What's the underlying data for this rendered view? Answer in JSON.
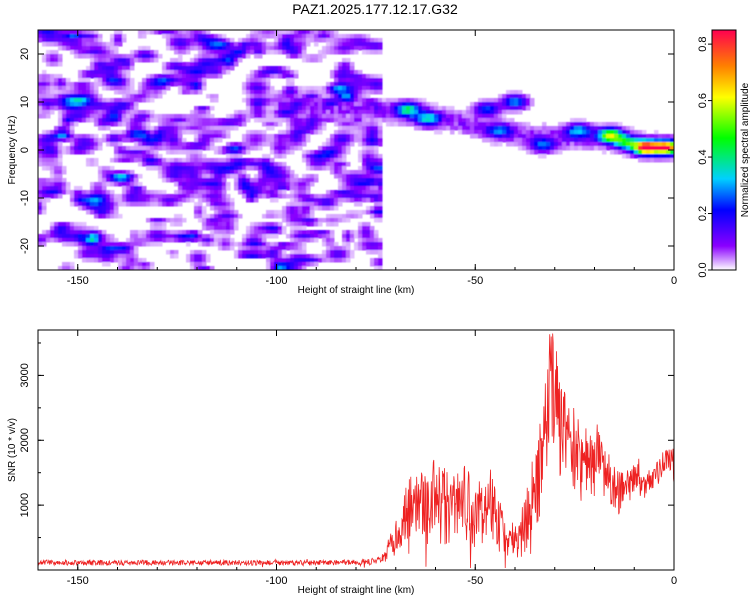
{
  "title": "PAZ1.2025.177.12.17.G32",
  "chart_data": [
    {
      "type": "heatmap",
      "title": "PAZ1.2025.177.12.17.G32",
      "xlabel": "Height of straight line (km)",
      "ylabel": "Frequency (Hz)",
      "xlim": [
        -160,
        0
      ],
      "ylim": [
        -25,
        25
      ],
      "x_ticks": [
        -150,
        -100,
        -50,
        0
      ],
      "y_ticks": [
        -20,
        -10,
        0,
        10,
        20
      ],
      "colorbar": {
        "label": "Normalized spectral amplitude",
        "range": [
          0.0,
          0.85
        ],
        "ticks": [
          0.0,
          0.2,
          0.4,
          0.6,
          0.8
        ],
        "colors": [
          "#ffffff",
          "#8a00ff",
          "#0000ff",
          "#00d0ff",
          "#00ff00",
          "#ffff00",
          "#ff8000",
          "#ff0050"
        ]
      },
      "noise_region_x": [
        -160,
        -73
      ],
      "noise_amplitude": 0.1,
      "ridge": [
        {
          "x": -95,
          "freq": 9
        },
        {
          "x": -80,
          "freq": 8.5
        },
        {
          "x": -73,
          "freq": 8
        },
        {
          "x": -65,
          "freq": 7.5
        },
        {
          "x": -55,
          "freq": 6
        },
        {
          "x": -45,
          "freq": 4
        },
        {
          "x": -35,
          "freq": 3
        },
        {
          "x": -25,
          "freq": 2.5
        },
        {
          "x": -15,
          "freq": 2.5
        },
        {
          "x": -8,
          "freq": 1
        },
        {
          "x": 0,
          "freq": 0.5
        }
      ],
      "ridge_peaks": [
        {
          "x": -67,
          "freq": 8.5,
          "amplitude": 0.35
        },
        {
          "x": -62,
          "freq": 6.5,
          "amplitude": 0.3
        },
        {
          "x": -47,
          "freq": 8.5,
          "amplitude": 0.25
        },
        {
          "x": -40,
          "freq": 10,
          "amplitude": 0.3
        },
        {
          "x": -44,
          "freq": 4,
          "amplitude": 0.22
        },
        {
          "x": -33,
          "freq": 1,
          "amplitude": 0.25
        },
        {
          "x": -24,
          "freq": 4,
          "amplitude": 0.3
        },
        {
          "x": -16,
          "freq": 3,
          "amplitude": 0.55
        },
        {
          "x": -12,
          "freq": 1.5,
          "amplitude": 0.35
        },
        {
          "x": -7,
          "freq": 0.5,
          "amplitude": 0.85
        },
        {
          "x": -2,
          "freq": 0.5,
          "amplitude": 0.75
        }
      ]
    },
    {
      "type": "line",
      "xlabel": "Height of straight line (km)",
      "ylabel": "SNR (10 * v/v)",
      "xlim": [
        -160,
        0
      ],
      "ylim": [
        0,
        3700
      ],
      "x_ticks": [
        -150,
        -100,
        -50,
        0
      ],
      "y_ticks": [
        1000,
        2000,
        3000
      ],
      "series": [
        {
          "color": "#ee2222",
          "x": [
            -160,
            -150,
            -140,
            -130,
            -120,
            -110,
            -100,
            -90,
            -80,
            -74,
            -72,
            -70,
            -68,
            -66,
            -64,
            -62,
            -60,
            -58,
            -56,
            -54,
            -52,
            -50,
            -48,
            -46,
            -44,
            -42,
            -40,
            -38,
            -36,
            -34,
            -32,
            -31,
            -30,
            -29,
            -28,
            -27,
            -26,
            -25,
            -24,
            -23,
            -22,
            -21,
            -20,
            -19,
            -18,
            -17,
            -16,
            -15,
            -14,
            -13,
            -12,
            -11,
            -10,
            -9,
            -8,
            -7,
            -6,
            -5,
            -4,
            -3,
            -2,
            -1,
            0
          ],
          "values": [
            120,
            110,
            110,
            115,
            110,
            115,
            110,
            110,
            120,
            130,
            300,
            500,
            800,
            1000,
            1000,
            1000,
            1150,
            950,
            950,
            1100,
            1000,
            900,
            900,
            1050,
            650,
            500,
            450,
            600,
            1000,
            1500,
            2200,
            2900,
            2800,
            2300,
            2200,
            2000,
            1800,
            1900,
            1700,
            1500,
            1700,
            1600,
            1500,
            1700,
            1600,
            1400,
            1400,
            1300,
            1200,
            1200,
            1300,
            1300,
            1400,
            1400,
            1300,
            1300,
            1400,
            1400,
            1500,
            1600,
            1700,
            1750,
            1800
          ],
          "noise": [
            40,
            40,
            40,
            40,
            40,
            40,
            40,
            40,
            40,
            60,
            150,
            300,
            400,
            500,
            500,
            550,
            600,
            650,
            600,
            600,
            650,
            550,
            500,
            550,
            450,
            300,
            300,
            400,
            600,
            800,
            900,
            900,
            900,
            850,
            800,
            750,
            700,
            650,
            600,
            550,
            550,
            500,
            500,
            500,
            450,
            400,
            400,
            350,
            350,
            300,
            300,
            250,
            250,
            250,
            200,
            200,
            200,
            200,
            200,
            200,
            200,
            250,
            300
          ]
        }
      ]
    }
  ]
}
